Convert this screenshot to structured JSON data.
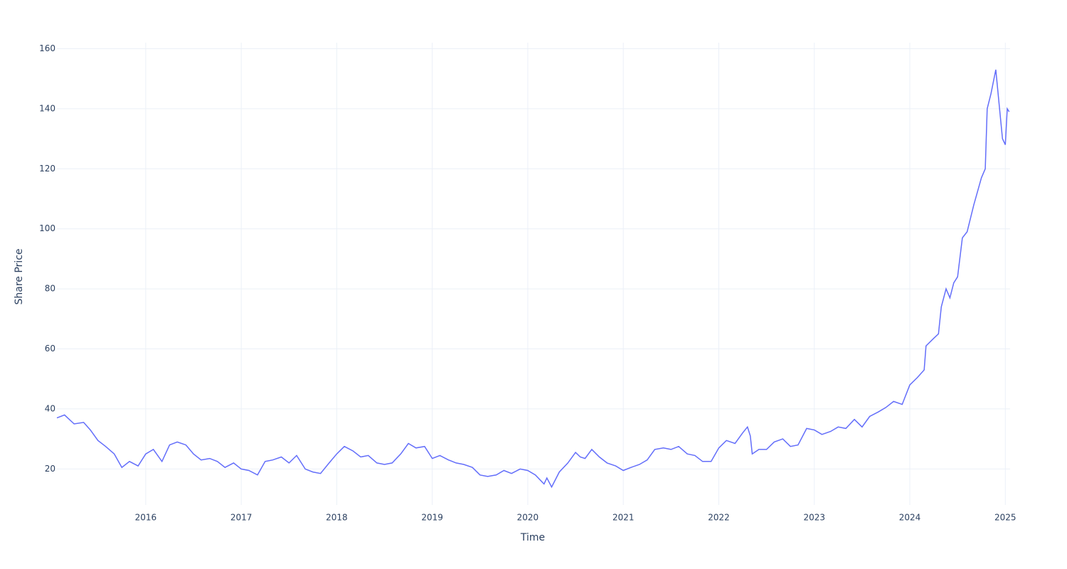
{
  "chart_data": {
    "type": "line",
    "xlabel": "Time",
    "ylabel": "Share Price",
    "x": [
      2015.07,
      2015.15,
      2015.25,
      2015.35,
      2015.42,
      2015.5,
      2015.58,
      2015.67,
      2015.75,
      2015.83,
      2015.92,
      2016.0,
      2016.08,
      2016.17,
      2016.25,
      2016.33,
      2016.42,
      2016.5,
      2016.58,
      2016.67,
      2016.75,
      2016.83,
      2016.92,
      2017.0,
      2017.08,
      2017.17,
      2017.25,
      2017.33,
      2017.42,
      2017.5,
      2017.58,
      2017.67,
      2017.75,
      2017.83,
      2017.92,
      2018.0,
      2018.08,
      2018.17,
      2018.25,
      2018.33,
      2018.42,
      2018.5,
      2018.58,
      2018.67,
      2018.75,
      2018.83,
      2018.92,
      2019.0,
      2019.08,
      2019.17,
      2019.25,
      2019.33,
      2019.42,
      2019.5,
      2019.58,
      2019.67,
      2019.75,
      2019.83,
      2019.92,
      2020.0,
      2020.08,
      2020.17,
      2020.2,
      2020.25,
      2020.33,
      2020.42,
      2020.5,
      2020.55,
      2020.6,
      2020.67,
      2020.75,
      2020.83,
      2020.92,
      2021.0,
      2021.08,
      2021.17,
      2021.25,
      2021.33,
      2021.42,
      2021.5,
      2021.58,
      2021.67,
      2021.75,
      2021.83,
      2021.92,
      2022.0,
      2022.08,
      2022.17,
      2022.25,
      2022.3,
      2022.33,
      2022.35,
      2022.42,
      2022.5,
      2022.58,
      2022.67,
      2022.75,
      2022.83,
      2022.92,
      2023.0,
      2023.08,
      2023.17,
      2023.25,
      2023.33,
      2023.42,
      2023.5,
      2023.58,
      2023.67,
      2023.75,
      2023.83,
      2023.92,
      2024.0,
      2024.08,
      2024.15,
      2024.17,
      2024.25,
      2024.3,
      2024.33,
      2024.38,
      2024.42,
      2024.46,
      2024.5,
      2024.55,
      2024.6,
      2024.67,
      2024.75,
      2024.79,
      2024.81,
      2024.85,
      2024.9,
      2024.94,
      2024.97,
      2025.0,
      2025.02,
      2025.04
    ],
    "series": [
      {
        "color": "#636efa",
        "values": [
          37,
          38,
          35,
          35.5,
          33,
          29.5,
          27.5,
          25,
          20.5,
          22.5,
          21,
          25,
          26.5,
          22.5,
          28,
          29,
          28,
          25,
          23,
          23.5,
          22.5,
          20.5,
          22,
          20,
          19.5,
          18,
          22.5,
          23,
          24,
          22,
          24.5,
          20,
          19,
          18.5,
          22,
          25,
          27.5,
          26,
          24,
          24.5,
          22,
          21.5,
          22,
          25,
          28.5,
          27,
          27.5,
          23.5,
          24.5,
          23,
          22,
          21.5,
          20.5,
          18,
          17.5,
          18,
          19.5,
          18.5,
          20,
          19.5,
          18,
          15,
          17,
          14,
          19,
          22,
          25.5,
          24,
          23.5,
          26.5,
          24,
          22,
          21,
          19.5,
          20.5,
          21.5,
          23,
          26.5,
          27,
          26.5,
          27.5,
          25,
          24.5,
          22.5,
          22.5,
          27,
          29.5,
          28.5,
          32,
          34,
          31,
          25,
          26.5,
          26.5,
          29,
          30,
          27.5,
          28,
          33.5,
          33,
          31.5,
          32.5,
          34,
          33.5,
          36.5,
          34,
          37.5,
          39,
          40.5,
          42.5,
          41.5,
          48,
          50.5,
          53,
          61,
          63.5,
          65,
          74,
          80,
          77,
          82,
          84,
          97,
          99,
          108,
          117,
          120,
          140,
          145,
          153,
          140,
          130,
          128,
          140,
          139
        ]
      }
    ],
    "xlim": [
      2015.07,
      2025.05
    ],
    "xticks": [
      2016,
      2017,
      2018,
      2019,
      2020,
      2021,
      2022,
      2023,
      2024,
      2025
    ],
    "ylim": [
      8,
      162
    ],
    "yticks": [
      20,
      40,
      60,
      80,
      100,
      120,
      140,
      160
    ],
    "grid": true
  }
}
